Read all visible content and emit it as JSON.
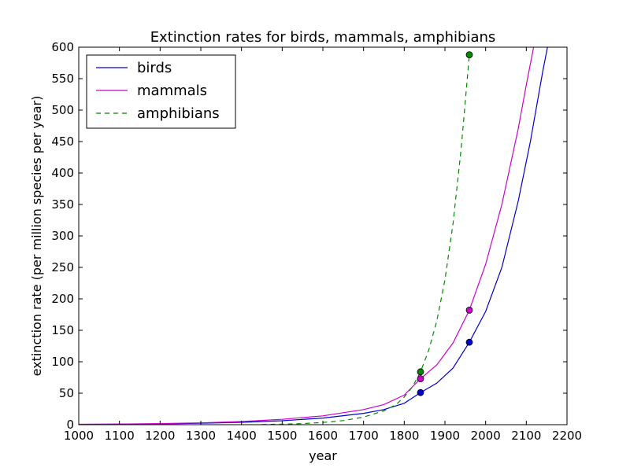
{
  "chart_data": {
    "type": "line",
    "title": "Extinction rates for birds, mammals, amphibians",
    "xlabel": "year",
    "ylabel": "extinction rate (per million species per year)",
    "xlim": [
      1000,
      2200
    ],
    "ylim": [
      0,
      600
    ],
    "xticks": [
      1000,
      1100,
      1200,
      1300,
      1400,
      1500,
      1600,
      1700,
      1800,
      1900,
      2000,
      2100,
      2200
    ],
    "yticks": [
      0,
      50,
      100,
      150,
      200,
      250,
      300,
      350,
      400,
      450,
      500,
      550,
      600
    ],
    "legend_position": "top-left",
    "series": [
      {
        "name": "birds",
        "color": "#0000cc",
        "style": "solid",
        "x": [
          1000,
          1100,
          1200,
          1300,
          1400,
          1500,
          1600,
          1700,
          1750,
          1800,
          1840,
          1880,
          1920,
          1960,
          2000,
          2040,
          2080,
          2110,
          2140,
          2152
        ],
        "y": [
          0.5,
          0.8,
          1.3,
          2.2,
          3.7,
          6.3,
          10.5,
          18,
          24,
          34,
          51,
          66,
          90,
          131,
          180,
          250,
          355,
          450,
          560,
          600
        ],
        "markers": [
          {
            "x": 1840,
            "y": 51
          },
          {
            "x": 1960,
            "y": 131
          }
        ]
      },
      {
        "name": "mammals",
        "color": "#cc00cc",
        "style": "solid",
        "x": [
          1000,
          1100,
          1200,
          1300,
          1400,
          1500,
          1600,
          1700,
          1750,
          1800,
          1840,
          1880,
          1920,
          1960,
          2000,
          2040,
          2080,
          2100,
          2118
        ],
        "y": [
          0.6,
          1.0,
          1.7,
          2.9,
          5,
          8.5,
          14,
          24,
          32,
          47,
          73,
          95,
          130,
          182,
          255,
          350,
          470,
          540,
          600
        ],
        "markers": [
          {
            "x": 1840,
            "y": 73
          },
          {
            "x": 1960,
            "y": 182
          }
        ]
      },
      {
        "name": "amphibians",
        "color": "#008800",
        "style": "dashed",
        "x": [
          1450,
          1500,
          1550,
          1600,
          1650,
          1700,
          1750,
          1780,
          1800,
          1820,
          1840,
          1860,
          1880,
          1900,
          1920,
          1940,
          1960
        ],
        "y": [
          0.3,
          0.8,
          1.8,
          3.5,
          6.5,
          12,
          22,
          32,
          44,
          60,
          84,
          118,
          165,
          230,
          320,
          440,
          588
        ],
        "markers": [
          {
            "x": 1840,
            "y": 84
          },
          {
            "x": 1960,
            "y": 588
          }
        ]
      }
    ]
  }
}
